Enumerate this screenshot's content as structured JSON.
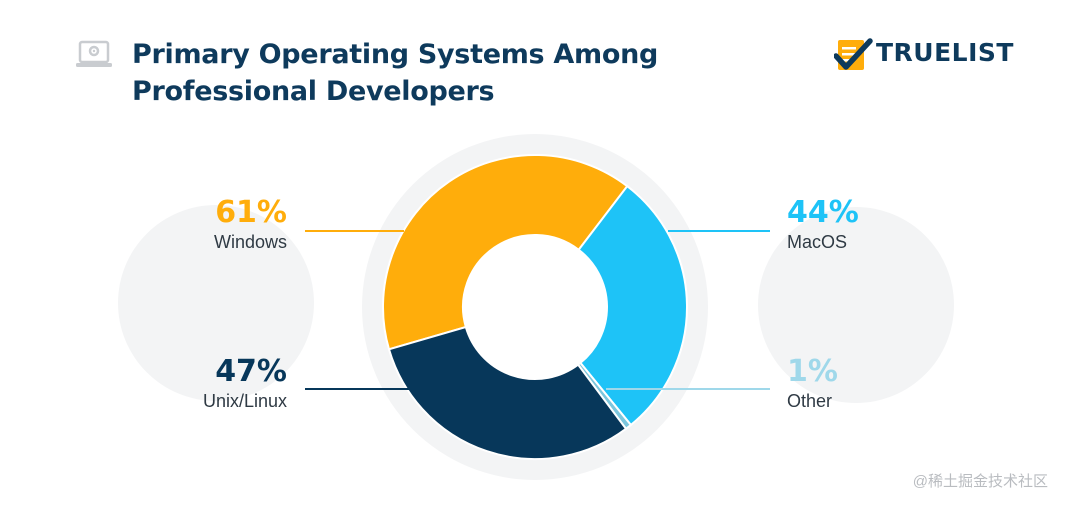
{
  "header": {
    "title_line1": "Primary Operating Systems Among",
    "title_line2": "Professional Developers",
    "logo_text": "TRUELIST"
  },
  "chart_data": {
    "type": "pie",
    "variant": "donut",
    "title": "Primary Operating Systems Among Professional Developers",
    "slices": [
      {
        "label": "Windows",
        "value": 61,
        "display": "61%",
        "color": "#ffad0b"
      },
      {
        "label": "MacOS",
        "value": 44,
        "display": "44%",
        "color": "#1ec3f7"
      },
      {
        "label": "Other",
        "value": 1,
        "display": "1%",
        "color": "#7cc6dd"
      },
      {
        "label": "Unix/Linux",
        "value": 47,
        "display": "47%",
        "color": "#07375a"
      }
    ]
  },
  "watermark": "@稀土掘金技术社区"
}
